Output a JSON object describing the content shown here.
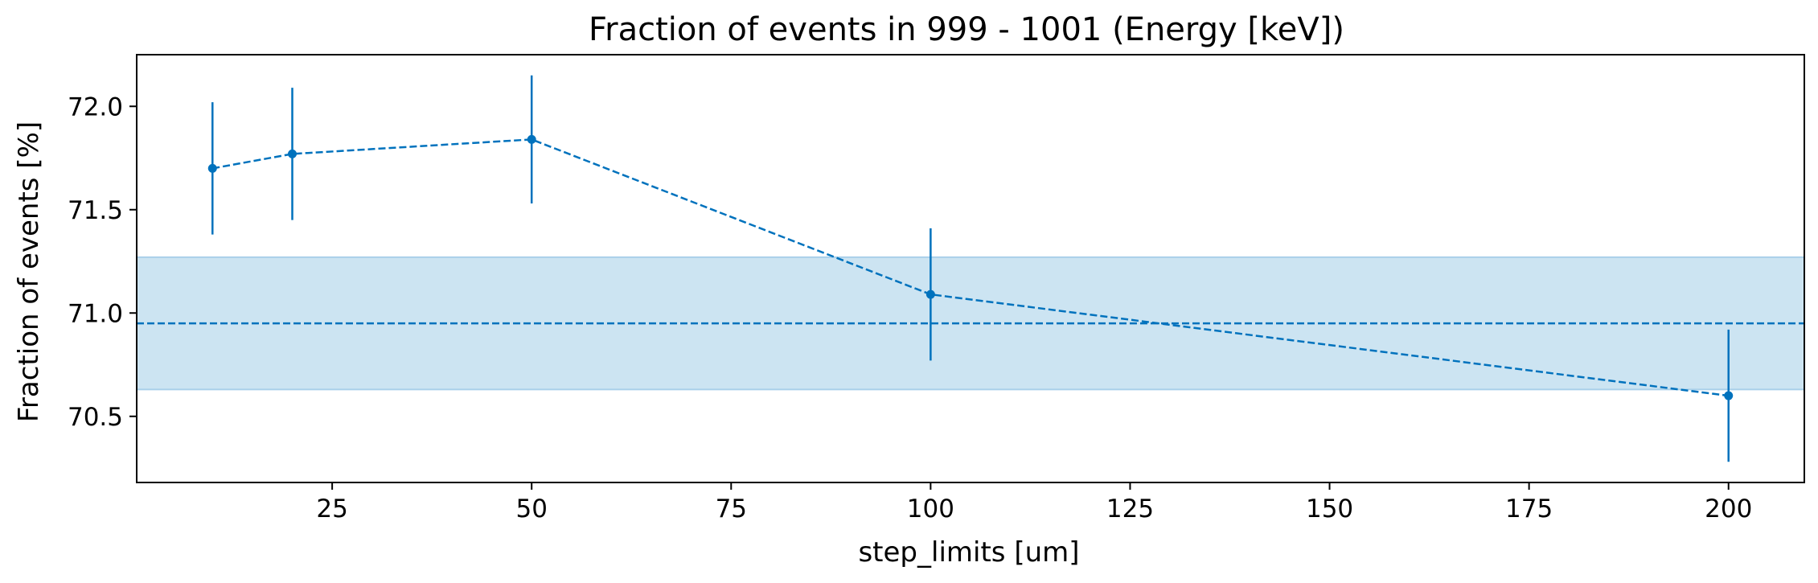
{
  "chart_data": {
    "type": "line",
    "title": "Fraction of events in 999 - 1001 (Energy [keV])",
    "xlabel": "step_limits [um]",
    "ylabel": "Fraction of events [%]",
    "xlim": [
      0.5,
      209.5
    ],
    "ylim": [
      70.18,
      72.25
    ],
    "xticks": [
      25,
      50,
      75,
      100,
      125,
      150,
      175,
      200
    ],
    "yticks": [
      70.5,
      71.0,
      71.5,
      72.0
    ],
    "xtick_labels": [
      "25",
      "50",
      "75",
      "100",
      "125",
      "150",
      "175",
      "200"
    ],
    "ytick_labels": [
      "70.5",
      "71.0",
      "71.5",
      "72.0"
    ],
    "grid": false,
    "series": [
      {
        "x": [
          10,
          20,
          50,
          100,
          200
        ],
        "y": [
          71.7,
          71.77,
          71.84,
          71.09,
          70.6
        ],
        "yerr": [
          0.32,
          0.32,
          0.31,
          0.32,
          0.32
        ],
        "color": "#0072bd",
        "linestyle": "dashed",
        "marker": "circle"
      }
    ],
    "reference": {
      "y": 70.95,
      "band": [
        70.63,
        71.27
      ],
      "line_color": "#0072bd",
      "band_color": "#cce4f2"
    }
  }
}
